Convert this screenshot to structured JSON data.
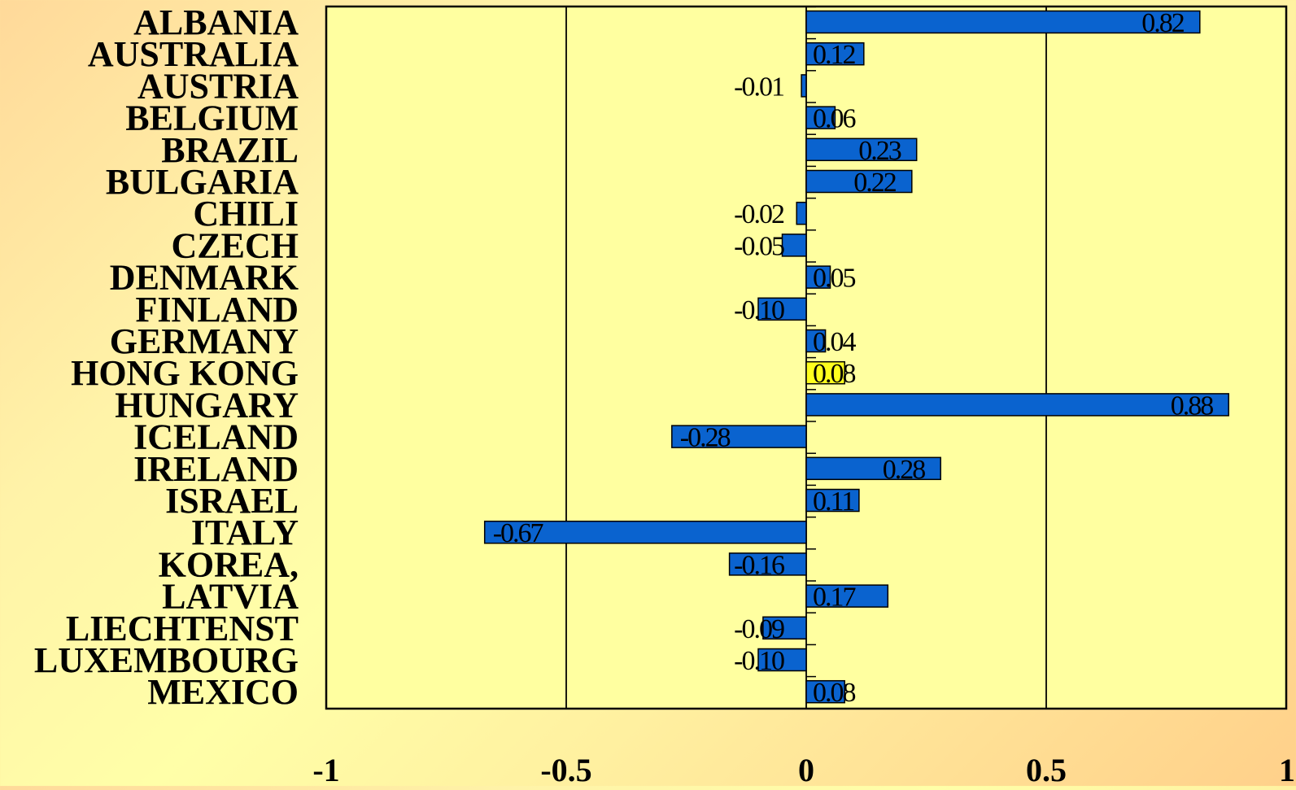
{
  "chart_data": {
    "type": "bar",
    "orientation": "horizontal",
    "title": "",
    "xlabel": "",
    "ylabel": "",
    "categories": [
      "ALBANIA",
      "AUSTRALIA",
      "AUSTRIA",
      "BELGIUM",
      "BRAZIL",
      "BULGARIA",
      "CHILI",
      "CZECH",
      "DENMARK",
      "FINLAND",
      "GERMANY",
      "HONG KONG",
      "HUNGARY",
      "ICELAND",
      "IRELAND",
      "ISRAEL",
      "ITALY",
      "KOREA,",
      "LATVIA",
      "LIECHTENST",
      "LUXEMBOURG",
      "MEXICO"
    ],
    "values": [
      0.82,
      0.12,
      -0.01,
      0.06,
      0.23,
      0.22,
      -0.02,
      -0.05,
      0.05,
      -0.1,
      0.04,
      0.08,
      0.88,
      -0.28,
      0.28,
      0.11,
      -0.67,
      -0.16,
      0.17,
      -0.09,
      -0.1,
      0.08
    ],
    "value_labels": [
      "0.82",
      "0.12",
      "-0.01",
      "0.06",
      "0.23",
      "0.22",
      "-0.02",
      "-0.05",
      "0.05",
      "-0.10",
      "0.04",
      "0.08",
      "0.88",
      "-0.28",
      "0.28",
      "0.11",
      "-0.67",
      "-0.16",
      "0.17",
      "-0.09",
      "-0.10",
      "0.08"
    ],
    "highlight_category": "HONG KONG",
    "xlim": [
      -1,
      1
    ],
    "xticks": [
      -1,
      -0.5,
      0,
      0.5,
      1
    ],
    "xtick_labels": [
      "-1",
      "-0.5",
      "0",
      "0.5",
      "1"
    ],
    "grid": "vertical",
    "legend": "none",
    "colors": {
      "bar": "#0a63cf",
      "highlight_bar": "#ffff1e",
      "bar_edge": "#000000",
      "plot_background": "#ffffa0",
      "grid": "#000000"
    }
  }
}
